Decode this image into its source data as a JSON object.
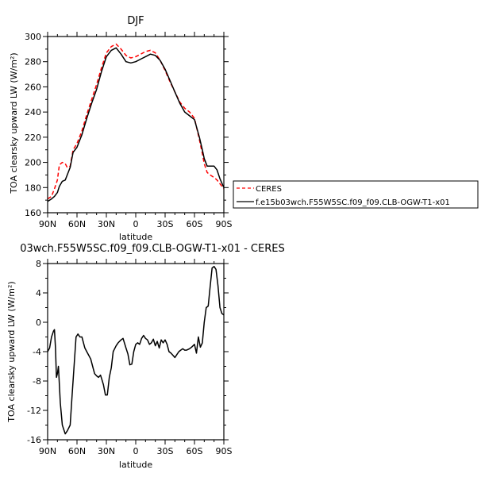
{
  "chart_data": [
    {
      "type": "line",
      "title": "DJF",
      "xlabel": "latitude",
      "ylabel": "TOA clearsky upward LW (W/m²)",
      "ylim": [
        160,
        300
      ],
      "x_ticks": [
        90,
        60,
        30,
        0,
        -30,
        -60,
        -90
      ],
      "x_tick_labels": [
        "90N",
        "60N",
        "30N",
        "0",
        "30S",
        "60S",
        "90S"
      ],
      "y_ticks": [
        160,
        180,
        200,
        220,
        240,
        260,
        280,
        300
      ],
      "y_tick_labels": [
        "160",
        "180",
        "200",
        "220",
        "240",
        "260",
        "280",
        "300"
      ],
      "legend_position": "right",
      "series": [
        {
          "name": "CERES",
          "color": "#ff0000",
          "style": "dashed",
          "x": [
            90,
            86,
            83,
            80,
            78,
            75,
            72,
            70,
            67,
            64,
            60,
            55,
            50,
            45,
            40,
            35,
            30,
            25,
            20,
            15,
            10,
            5,
            0,
            -5,
            -10,
            -15,
            -20,
            -25,
            -30,
            -35,
            -40,
            -45,
            -50,
            -55,
            -60,
            -65,
            -68,
            -70,
            -73,
            -76,
            -80,
            -83,
            -86,
            -90
          ],
          "values": [
            171,
            173,
            179,
            186,
            198,
            200,
            199,
            196,
            197,
            210,
            215,
            225,
            238,
            250,
            262,
            275,
            287,
            292,
            294,
            290,
            285,
            283,
            284,
            286,
            288,
            289,
            287,
            281,
            273,
            264,
            256,
            248,
            243,
            240,
            235,
            218,
            207,
            199,
            192,
            190,
            188,
            186,
            183,
            179
          ]
        },
        {
          "name": "f.e15b03wch.F55W5SC.f09_f09.CLB-OGW-T1-x01",
          "color": "#000000",
          "style": "solid",
          "x": [
            90,
            86,
            83,
            80,
            78,
            75,
            72,
            70,
            67,
            64,
            60,
            55,
            50,
            45,
            40,
            35,
            30,
            25,
            20,
            15,
            10,
            5,
            0,
            -5,
            -10,
            -15,
            -20,
            -25,
            -30,
            -35,
            -40,
            -45,
            -50,
            -55,
            -60,
            -65,
            -68,
            -70,
            -73,
            -76,
            -80,
            -83,
            -86,
            -90
          ],
          "values": [
            169,
            171,
            173,
            176,
            181,
            185,
            186,
            190,
            196,
            208,
            212,
            222,
            235,
            247,
            258,
            272,
            284,
            289,
            291,
            286,
            280,
            279,
            280,
            282,
            284,
            286,
            285,
            281,
            274,
            265,
            256,
            247,
            240,
            237,
            234,
            220,
            210,
            203,
            197,
            197,
            197,
            194,
            187,
            180
          ]
        }
      ]
    },
    {
      "type": "line",
      "title": "03wch.F55W5SC.f09_f09.CLB-OGW-T1-x01 - CERES",
      "xlabel": "latitude",
      "ylabel": "TOA clearsky upward LW (W/m²)",
      "ylim": [
        -16,
        8
      ],
      "x_ticks": [
        90,
        60,
        30,
        0,
        -30,
        -60,
        -90
      ],
      "x_tick_labels": [
        "90N",
        "60N",
        "30N",
        "0",
        "30S",
        "60S",
        "90S"
      ],
      "y_ticks": [
        -16,
        -12,
        -8,
        -4,
        0,
        4,
        8
      ],
      "y_tick_labels": [
        "-16",
        "-12",
        "-8",
        "-4",
        "0",
        "4",
        "8"
      ],
      "series": [
        {
          "color": "#000000",
          "style": "solid",
          "x": [
            90,
            88,
            86,
            84,
            83,
            82,
            81,
            80,
            79,
            77,
            75,
            72,
            70,
            67,
            65,
            63,
            61,
            59,
            57,
            55,
            52,
            50,
            48,
            46,
            44,
            42,
            40,
            38,
            36,
            35,
            33,
            31,
            29,
            27,
            25,
            23,
            20,
            18,
            15,
            13,
            10,
            8,
            6,
            4,
            2,
            0,
            -2,
            -4,
            -6,
            -8,
            -10,
            -12,
            -14,
            -16,
            -18,
            -20,
            -22,
            -24,
            -26,
            -28,
            -30,
            -32,
            -34,
            -36,
            -38,
            -40,
            -42,
            -44,
            -46,
            -48,
            -50,
            -52,
            -55,
            -57,
            -60,
            -62,
            -64,
            -66,
            -68,
            -70,
            -72,
            -74,
            -76,
            -78,
            -80,
            -82,
            -84,
            -86,
            -88,
            -90
          ],
          "values": [
            -4.0,
            -3.5,
            -2.0,
            -1.2,
            -1.0,
            -3.5,
            -7.5,
            -7.0,
            -6.0,
            -11.0,
            -14.0,
            -15.2,
            -14.8,
            -14.0,
            -10.0,
            -6.0,
            -2.0,
            -1.6,
            -2.0,
            -2.0,
            -3.5,
            -4.0,
            -4.5,
            -5.0,
            -6.0,
            -7.0,
            -7.3,
            -7.5,
            -7.2,
            -7.6,
            -8.5,
            -9.9,
            -9.9,
            -7.5,
            -6.2,
            -4.0,
            -3.2,
            -2.8,
            -2.4,
            -2.2,
            -3.5,
            -4.3,
            -5.8,
            -5.7,
            -4.0,
            -3.0,
            -2.8,
            -3.0,
            -2.2,
            -1.8,
            -2.2,
            -2.4,
            -3.0,
            -2.8,
            -2.3,
            -3.2,
            -2.6,
            -3.5,
            -2.4,
            -2.8,
            -2.4,
            -3.0,
            -4.0,
            -4.2,
            -4.5,
            -4.8,
            -4.4,
            -4.0,
            -3.8,
            -3.6,
            -3.8,
            -3.8,
            -3.6,
            -3.4,
            -3.0,
            -4.2,
            -2.0,
            -3.4,
            -2.8,
            0.0,
            2.0,
            2.2,
            4.8,
            7.4,
            7.6,
            7.2,
            5.0,
            2.0,
            1.2,
            1.0
          ]
        }
      ]
    }
  ]
}
